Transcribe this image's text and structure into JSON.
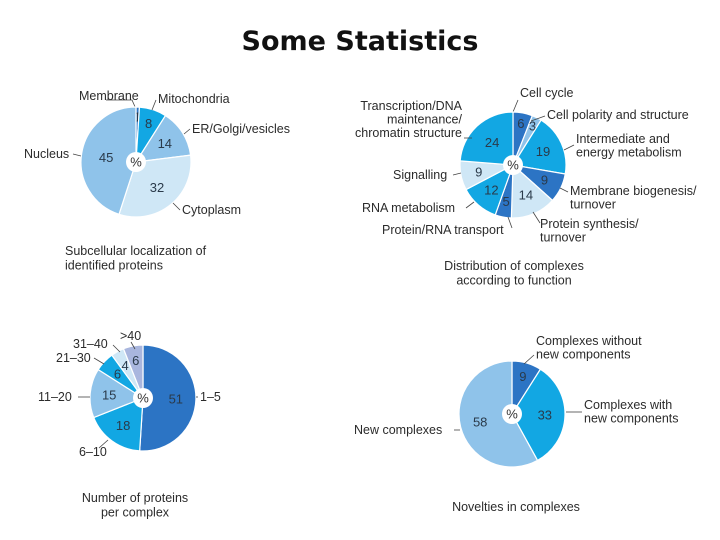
{
  "page": {
    "title": "Some Statistics"
  },
  "colors": {
    "dark": "#2c74c4",
    "bright": "#12a7e3",
    "mid": "#8fc3ea",
    "light": "#cfe7f6",
    "lavender": "#a9b6de",
    "center_disc": "#ffffff"
  },
  "chart_data": [
    {
      "id": "subcellular",
      "type": "pie",
      "center_label": "%",
      "caption": [
        "Subcellular localization of",
        "identified proteins"
      ],
      "slices": [
        {
          "label": "Membrane",
          "value": 1,
          "value_label": "1",
          "color": "#2c74c4"
        },
        {
          "label": "Mitochondria",
          "value": 8,
          "value_label": "8",
          "color": "#12a7e3"
        },
        {
          "label": "ER/Golgi/vesicles",
          "value": 14,
          "value_label": "14",
          "color": "#8fc3ea"
        },
        {
          "label": "Cytoplasm",
          "value": 32,
          "value_label": "32",
          "color": "#cfe7f6"
        },
        {
          "label": "Nucleus",
          "value": 45,
          "value_label": "45",
          "color": "#8fc3ea"
        }
      ]
    },
    {
      "id": "function",
      "type": "pie",
      "center_label": "%",
      "caption": [
        "Distribution of complexes",
        "according to function"
      ],
      "slices": [
        {
          "label": "Cell cycle",
          "value": 6,
          "value_label": "6",
          "color": "#2c74c4"
        },
        {
          "label": "Cell polarity and structure",
          "value": 3,
          "value_label": "3",
          "color": "#8fc3ea"
        },
        {
          "label": "Intermediate and energy metabolism",
          "value": 19,
          "value_label": "19",
          "color": "#12a7e3"
        },
        {
          "label": "Membrane biogenesis/ turnover",
          "value": 9,
          "value_label": "9",
          "color": "#2c74c4"
        },
        {
          "label": "Protein synthesis/ turnover",
          "value": 14,
          "value_label": "14",
          "color": "#cfe7f6"
        },
        {
          "label": "Protein/RNA transport",
          "value": 5,
          "value_label": "5",
          "color": "#2c74c4"
        },
        {
          "label": "RNA metabolism",
          "value": 12,
          "value_label": "12",
          "color": "#12a7e3"
        },
        {
          "label": "Signalling",
          "value": 9,
          "value_label": "9",
          "color": "#cfe7f6"
        },
        {
          "label": "Transcription/DNA maintenance/ chromatin structure",
          "value": 24,
          "value_label": "24",
          "color": "#12a7e3"
        }
      ]
    },
    {
      "id": "size",
      "type": "pie",
      "center_label": "%",
      "caption": [
        "Number of proteins",
        "per complex"
      ],
      "slices": [
        {
          "label": "1–5",
          "value": 51,
          "value_label": "51",
          "color": "#2c74c4"
        },
        {
          "label": "6–10",
          "value": 18,
          "value_label": "18",
          "color": "#12a7e3"
        },
        {
          "label": "11–20",
          "value": 15,
          "value_label": "15",
          "color": "#8fc3ea"
        },
        {
          "label": "21–30",
          "value": 6,
          "value_label": "6",
          "color": "#12a7e3"
        },
        {
          "label": "31–40",
          "value": 4,
          "value_label": "4",
          "color": "#cfe7f6"
        },
        {
          "label": ">40",
          "value": 6,
          "value_label": "6",
          "color": "#a9b6de"
        }
      ]
    },
    {
      "id": "novelty",
      "type": "pie",
      "center_label": "%",
      "caption": [
        "Novelties in complexes"
      ],
      "slices": [
        {
          "label": "Complexes without new components",
          "value": 9,
          "value_label": "9",
          "color": "#2c74c4"
        },
        {
          "label": "Complexes with new components",
          "value": 33,
          "value_label": "33",
          "color": "#12a7e3"
        },
        {
          "label": "New complexes",
          "value": 58,
          "value_label": "58",
          "color": "#8fc3ea"
        }
      ]
    }
  ]
}
